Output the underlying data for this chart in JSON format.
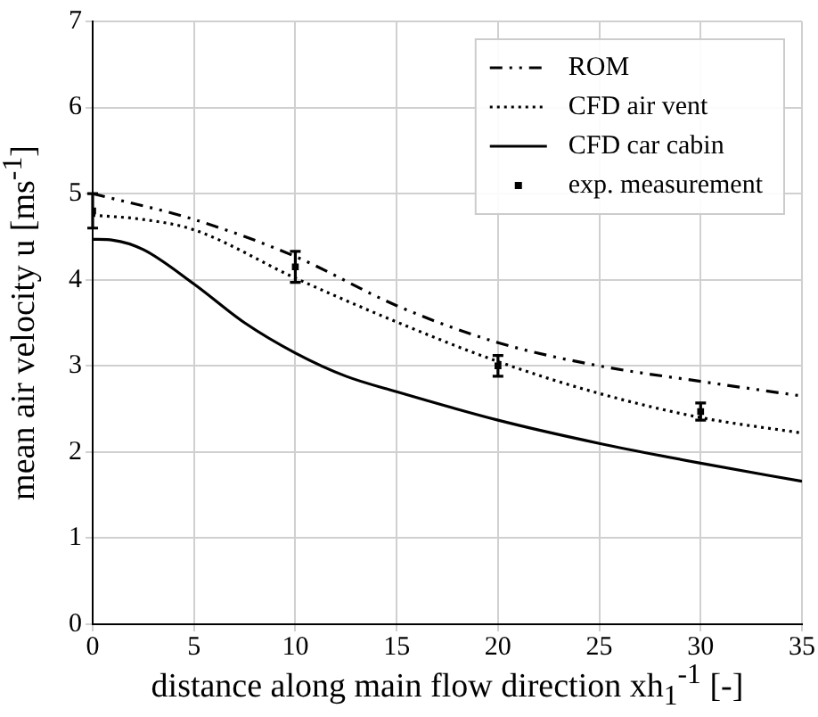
{
  "chart_data": {
    "type": "line",
    "xlabel": "distance along main flow direction xh$_{1}$$^{-1}$ [-]",
    "ylabel": "mean air velocity u [ms$^{-1}$]",
    "xlim": [
      0,
      35
    ],
    "xticks": [
      0,
      5,
      10,
      15,
      20,
      25,
      30,
      35
    ],
    "ylim": [
      0,
      7
    ],
    "yticks": [
      0,
      1,
      2,
      3,
      4,
      5,
      6,
      7
    ],
    "grid": true,
    "legend": "top right",
    "series": [
      {
        "name": "ROM",
        "color": "#000000",
        "line_style": "dashed",
        "x": [
          0,
          5,
          10,
          15,
          20,
          25,
          30,
          35
        ],
        "values": [
          5.0,
          4.7,
          4.27,
          3.7,
          3.27,
          3.0,
          2.82,
          2.65
        ]
      },
      {
        "name": "CFD air vent",
        "color": "#000000",
        "line_style": "dotted",
        "x": [
          0,
          2.5,
          5,
          10,
          15,
          20,
          25,
          30,
          35
        ],
        "values": [
          4.75,
          4.7,
          4.58,
          4.02,
          3.51,
          3.05,
          2.68,
          2.4,
          2.22
        ]
      },
      {
        "name": "CFD car cabin",
        "color": "#000000",
        "line_style": "solid",
        "x": [
          0,
          1,
          2.5,
          5,
          7.5,
          10,
          12.5,
          15,
          20,
          25,
          30,
          35
        ],
        "values": [
          4.47,
          4.46,
          4.35,
          3.95,
          3.5,
          3.15,
          2.88,
          2.7,
          2.37,
          2.1,
          1.87,
          1.66
        ]
      },
      {
        "name": "exp. measurement",
        "type": "scatter",
        "marker": "square",
        "color": "#000000",
        "x": [
          0,
          10,
          20,
          30
        ],
        "values": [
          4.8,
          4.15,
          3.0,
          2.47
        ],
        "errors": [
          0.2,
          0.18,
          0.12,
          0.1
        ]
      }
    ]
  }
}
